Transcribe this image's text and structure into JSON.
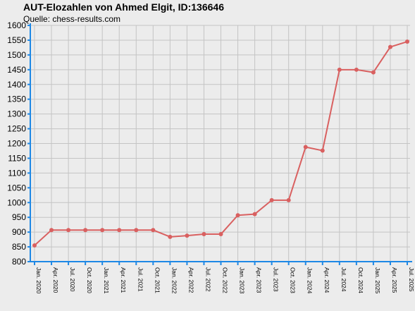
{
  "header": {
    "title": "AUT-Elozahlen von Ahmed Elgit, ID:136646",
    "subtitle": "Quelle: chess-results.com"
  },
  "colors": {
    "line": "#d96060",
    "point": "#d96060",
    "axis": "#1e88e5",
    "grid": "#c4c4c4",
    "background": "#ececec"
  },
  "chart_data": {
    "type": "line",
    "title": "AUT-Elozahlen von Ahmed Elgit, ID:136646",
    "subtitle": "Quelle: chess-results.com",
    "xlabel": "",
    "ylabel": "",
    "ylim": [
      800,
      1600
    ],
    "y_ticks": [
      800,
      850,
      900,
      950,
      1000,
      1050,
      1100,
      1150,
      1200,
      1250,
      1300,
      1350,
      1400,
      1450,
      1500,
      1550,
      1600
    ],
    "grid": true,
    "legend": "none",
    "categories": [
      "Jan. 2020",
      "Apr. 2020",
      "Jul. 2020",
      "Oct. 2020",
      "Jan. 2021",
      "Apr. 2021",
      "Jul. 2021",
      "Oct. 2021",
      "Jan. 2022",
      "Apr. 2022",
      "Jul. 2022",
      "Oct. 2022",
      "Jan. 2023",
      "Apr. 2023",
      "Jul. 2023",
      "Oct. 2023",
      "Jan. 2024",
      "Apr. 2024",
      "Jul. 2024",
      "Oct. 2024",
      "Jan. 2025",
      "Apr. 2025",
      "Jul. 2025"
    ],
    "series": [
      {
        "values": [
          855,
          907,
          907,
          907,
          907,
          907,
          907,
          907,
          884,
          888,
          893,
          893,
          957,
          961,
          1008,
          1008,
          1188,
          1176,
          1450,
          1450,
          1441,
          1527,
          1545
        ]
      }
    ]
  }
}
